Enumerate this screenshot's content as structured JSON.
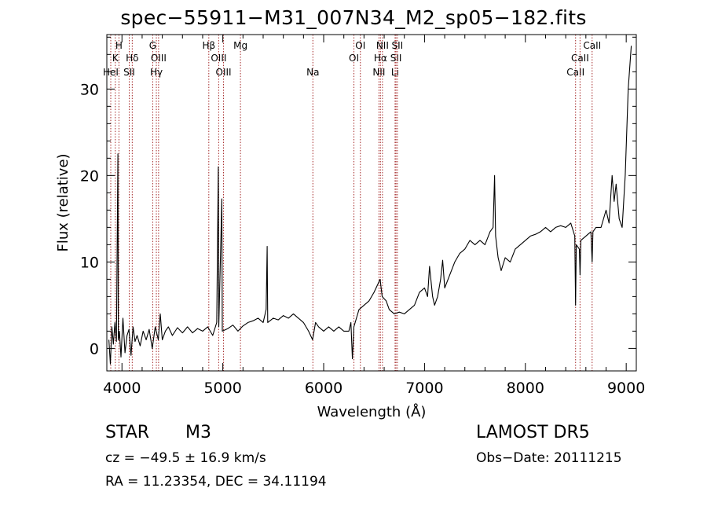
{
  "header": {
    "title": "spec−55911−M31_007N34_M2_sp05−182.fits"
  },
  "info": {
    "class_label": "STAR",
    "subclass": "M3",
    "survey": "LAMOST  DR5",
    "velocity": "cz = −49.5 ± 16.9 km/s",
    "obs_date": "Obs−Date: 20111215",
    "coords": "RA =  11.23354, DEC =  34.11194"
  },
  "chart_data": {
    "type": "line",
    "xlabel": "Wavelength (Å)",
    "ylabel": "Flux (relative)",
    "xlim": [
      3850,
      9100
    ],
    "ylim": [
      -2.6,
      36.3
    ],
    "x_ticks": [
      4000,
      5000,
      6000,
      7000,
      8000,
      9000
    ],
    "y_ticks": [
      0,
      10,
      20,
      30
    ],
    "grid": false,
    "series": [
      {
        "points": [
          [
            3870,
            1.0
          ],
          [
            3885,
            -1.8
          ],
          [
            3900,
            2.5
          ],
          [
            3915,
            0.5
          ],
          [
            3930,
            3.0
          ],
          [
            3945,
            0.8
          ],
          [
            3960,
            22.5
          ],
          [
            3964,
            1.0
          ],
          [
            3975,
            2.0
          ],
          [
            3990,
            -1.0
          ],
          [
            4010,
            3.5
          ],
          [
            4030,
            -0.5
          ],
          [
            4050,
            1.5
          ],
          [
            4070,
            2.2
          ],
          [
            4090,
            -0.8
          ],
          [
            4110,
            2.5
          ],
          [
            4130,
            0.8
          ],
          [
            4150,
            1.5
          ],
          [
            4180,
            0.3
          ],
          [
            4210,
            2.0
          ],
          [
            4240,
            1.0
          ],
          [
            4270,
            2.2
          ],
          [
            4300,
            0.0
          ],
          [
            4330,
            2.5
          ],
          [
            4360,
            1.0
          ],
          [
            4380,
            4.0
          ],
          [
            4400,
            1.0
          ],
          [
            4430,
            2.0
          ],
          [
            4460,
            2.5
          ],
          [
            4500,
            1.5
          ],
          [
            4550,
            2.4
          ],
          [
            4600,
            1.8
          ],
          [
            4650,
            2.5
          ],
          [
            4700,
            1.8
          ],
          [
            4750,
            2.3
          ],
          [
            4800,
            2.0
          ],
          [
            4850,
            2.5
          ],
          [
            4900,
            1.5
          ],
          [
            4940,
            3.0
          ],
          [
            4955,
            21.0
          ],
          [
            4960,
            2.5
          ],
          [
            4990,
            17.3
          ],
          [
            4995,
            2.0
          ],
          [
            5050,
            2.3
          ],
          [
            5100,
            2.7
          ],
          [
            5150,
            2.0
          ],
          [
            5200,
            2.6
          ],
          [
            5250,
            3.0
          ],
          [
            5300,
            3.2
          ],
          [
            5350,
            3.5
          ],
          [
            5400,
            3.0
          ],
          [
            5430,
            4.5
          ],
          [
            5440,
            11.8
          ],
          [
            5445,
            3.0
          ],
          [
            5500,
            3.5
          ],
          [
            5550,
            3.3
          ],
          [
            5600,
            3.8
          ],
          [
            5650,
            3.5
          ],
          [
            5700,
            4.0
          ],
          [
            5750,
            3.5
          ],
          [
            5800,
            3.0
          ],
          [
            5850,
            2.0
          ],
          [
            5890,
            1.0
          ],
          [
            5920,
            3.0
          ],
          [
            5950,
            2.5
          ],
          [
            6000,
            2.0
          ],
          [
            6050,
            2.5
          ],
          [
            6100,
            2.0
          ],
          [
            6150,
            2.5
          ],
          [
            6200,
            2.0
          ],
          [
            6250,
            2.0
          ],
          [
            6270,
            3.0
          ],
          [
            6285,
            -1.2
          ],
          [
            6300,
            2.5
          ],
          [
            6350,
            4.5
          ],
          [
            6400,
            5.0
          ],
          [
            6450,
            5.5
          ],
          [
            6500,
            6.5
          ],
          [
            6560,
            8.0
          ],
          [
            6580,
            6.0
          ],
          [
            6620,
            5.5
          ],
          [
            6650,
            4.5
          ],
          [
            6700,
            4.0
          ],
          [
            6750,
            4.2
          ],
          [
            6800,
            4.0
          ],
          [
            6850,
            4.5
          ],
          [
            6900,
            5.0
          ],
          [
            6950,
            6.5
          ],
          [
            7000,
            7.0
          ],
          [
            7030,
            6.0
          ],
          [
            7050,
            9.5
          ],
          [
            7080,
            6.0
          ],
          [
            7100,
            5.0
          ],
          [
            7130,
            6.0
          ],
          [
            7160,
            8.0
          ],
          [
            7180,
            10.2
          ],
          [
            7200,
            7.0
          ],
          [
            7250,
            8.5
          ],
          [
            7300,
            10.0
          ],
          [
            7350,
            11.0
          ],
          [
            7400,
            11.5
          ],
          [
            7450,
            12.5
          ],
          [
            7500,
            12.0
          ],
          [
            7550,
            12.5
          ],
          [
            7600,
            12.0
          ],
          [
            7650,
            13.5
          ],
          [
            7680,
            14.0
          ],
          [
            7695,
            20.0
          ],
          [
            7705,
            13.0
          ],
          [
            7730,
            10.5
          ],
          [
            7760,
            9.0
          ],
          [
            7800,
            10.5
          ],
          [
            7850,
            10.0
          ],
          [
            7900,
            11.5
          ],
          [
            7950,
            12.0
          ],
          [
            8000,
            12.5
          ],
          [
            8050,
            13.0
          ],
          [
            8100,
            13.2
          ],
          [
            8150,
            13.5
          ],
          [
            8200,
            14.0
          ],
          [
            8250,
            13.5
          ],
          [
            8300,
            14.0
          ],
          [
            8350,
            14.2
          ],
          [
            8400,
            14.0
          ],
          [
            8450,
            14.5
          ],
          [
            8490,
            13.0
          ],
          [
            8498,
            5.0
          ],
          [
            8505,
            12.0
          ],
          [
            8535,
            11.5
          ],
          [
            8542,
            8.5
          ],
          [
            8550,
            12.5
          ],
          [
            8600,
            13.0
          ],
          [
            8650,
            13.5
          ],
          [
            8662,
            10.0
          ],
          [
            8670,
            13.5
          ],
          [
            8700,
            14.0
          ],
          [
            8750,
            14.0
          ],
          [
            8800,
            16.0
          ],
          [
            8830,
            14.5
          ],
          [
            8860,
            20.0
          ],
          [
            8880,
            17.0
          ],
          [
            8900,
            19.0
          ],
          [
            8930,
            15.0
          ],
          [
            8960,
            14.0
          ],
          [
            8990,
            20.0
          ],
          [
            9020,
            30.0
          ],
          [
            9050,
            35.0
          ]
        ]
      }
    ],
    "lines": [
      {
        "label": "H",
        "wave": 3970,
        "row": 0
      },
      {
        "label": "K",
        "wave": 3934,
        "row": 1
      },
      {
        "label": "HeI",
        "wave": 3889,
        "row": 2
      },
      {
        "label": "Hδ",
        "wave": 4102,
        "row": 1
      },
      {
        "label": "SII",
        "wave": 4072,
        "row": 2
      },
      {
        "label": "G",
        "wave": 4305,
        "row": 0
      },
      {
        "label": "OIII",
        "wave": 4363,
        "row": 1
      },
      {
        "label": "Hγ",
        "wave": 4341,
        "row": 2
      },
      {
        "label": "Hβ",
        "wave": 4861,
        "row": 0
      },
      {
        "label": "OIII",
        "wave": 4959,
        "row": 1
      },
      {
        "label": "OIII",
        "wave": 5007,
        "row": 2
      },
      {
        "label": "Mg",
        "wave": 5175,
        "row": 0
      },
      {
        "label": "Na",
        "wave": 5893,
        "row": 2
      },
      {
        "label": "OI",
        "wave": 6300,
        "row": 1
      },
      {
        "label": "OI",
        "wave": 6364,
        "row": 0
      },
      {
        "label": "NII",
        "wave": 6548,
        "row": 2
      },
      {
        "label": "Hα",
        "wave": 6563,
        "row": 1
      },
      {
        "label": "NII",
        "wave": 6583,
        "row": 0
      },
      {
        "label": "Li",
        "wave": 6708,
        "row": 2
      },
      {
        "label": "SII",
        "wave": 6717,
        "row": 1
      },
      {
        "label": "SII",
        "wave": 6731,
        "row": 0
      },
      {
        "label": "CaII",
        "wave": 8498,
        "row": 2
      },
      {
        "label": "CaII",
        "wave": 8542,
        "row": 1
      },
      {
        "label": "CaII",
        "wave": 8662,
        "row": 0
      }
    ],
    "line_color": "#a52a2a"
  }
}
